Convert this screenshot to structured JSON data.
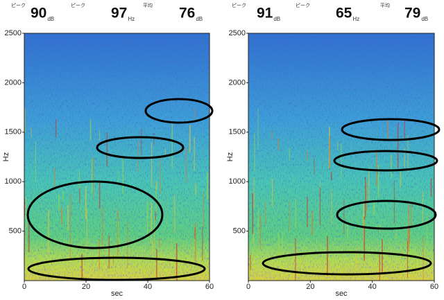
{
  "panels": [
    {
      "header": [
        {
          "label": "ピーク",
          "value": 90,
          "unit": "dB"
        },
        {
          "label": "ピーク",
          "value": 97,
          "unit": "Hz"
        },
        {
          "label": "平均",
          "value": 76,
          "unit": "dB"
        }
      ],
      "y_label": "Hz",
      "x_label": "sec",
      "ylim": [
        0,
        2500
      ],
      "yticks": [
        500,
        1000,
        1500,
        2000,
        2500
      ],
      "xlim": [
        0,
        60
      ],
      "xticks": [
        0,
        20,
        40,
        60
      ]
    },
    {
      "header": [
        {
          "label": "ピーク",
          "value": 91,
          "unit": "dB"
        },
        {
          "label": "ピーク",
          "value": 65,
          "unit": "Hz"
        },
        {
          "label": "平均",
          "value": 79,
          "unit": "dB"
        }
      ],
      "y_label": "Hz",
      "x_label": "sec",
      "ylim": [
        0,
        2500
      ],
      "yticks": [
        500,
        1000,
        1500,
        2000,
        2500
      ],
      "xlim": [
        0,
        60
      ],
      "xticks": [
        0,
        20,
        40,
        60
      ]
    }
  ]
}
